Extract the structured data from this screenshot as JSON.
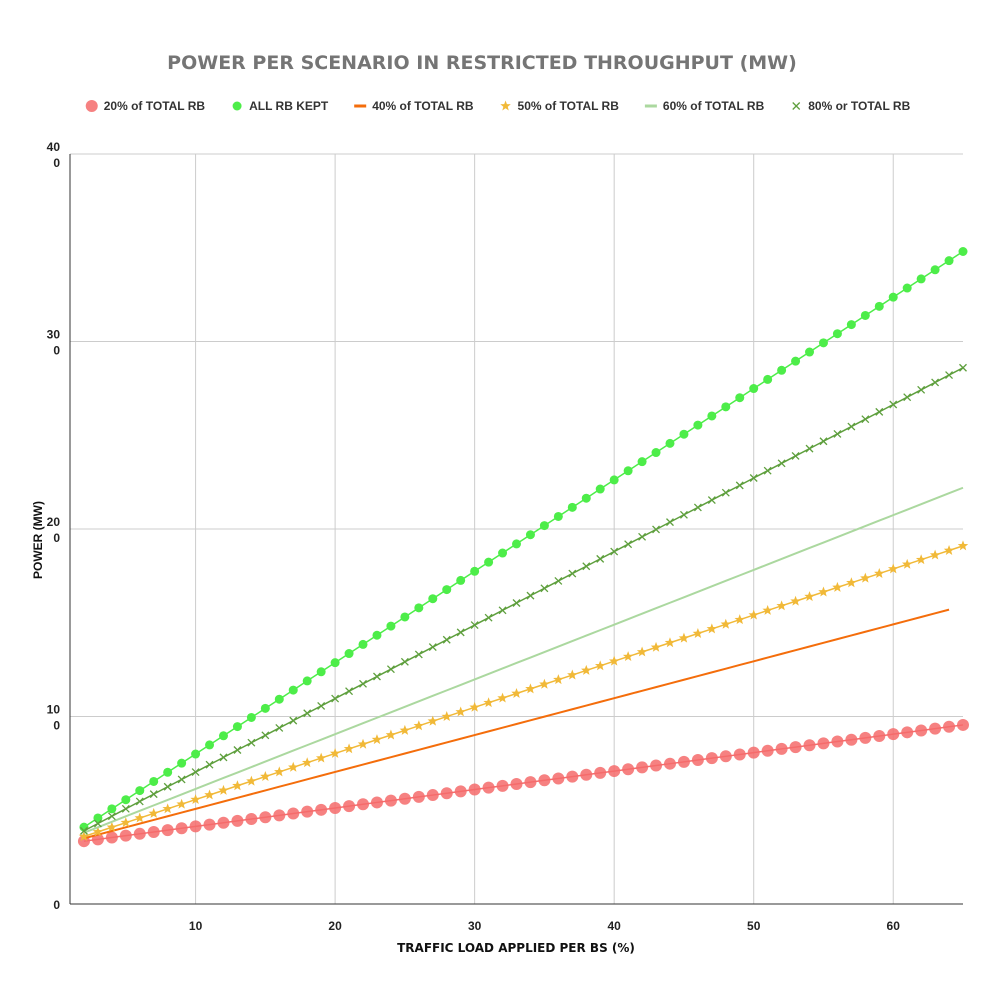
{
  "chart_data": {
    "type": "line",
    "title": "POWER PER SCENARIO IN RESTRICTED THROUGHPUT (MW)",
    "xlabel": "TRAFFIC LOAD APPLIED PER BS (%)",
    "ylabel": "POWER (MW)",
    "xlim": [
      1,
      65
    ],
    "ylim": [
      0,
      400
    ],
    "xticks": [
      10,
      20,
      30,
      40,
      50,
      60
    ],
    "xtick_labels": [
      "10",
      "20",
      "30",
      "40",
      "50",
      "60"
    ],
    "yticks": [
      0,
      100,
      200,
      300,
      400
    ],
    "ytick_labels": [
      [
        "0"
      ],
      [
        "10",
        "0"
      ],
      [
        "20",
        "0"
      ],
      [
        "30",
        "0"
      ],
      [
        "40",
        "0"
      ]
    ],
    "grid": true,
    "legend_position": "top",
    "series": [
      {
        "name": "20% of TOTAL  RB",
        "color": "#f46b6b",
        "marker": "circle-large",
        "x_start": 2,
        "x_end": 65,
        "x_step": 1,
        "y_start": 33.5,
        "y_end": 95.5
      },
      {
        "name": "ALL RB KEPT",
        "color": "#4ded49",
        "marker": "circle",
        "x_start": 2,
        "x_end": 65,
        "x_step": 1,
        "y_start": 41,
        "y_end": 348
      },
      {
        "name": "40% of TOTAL  RB",
        "color": "#f46d0b",
        "marker": "line",
        "x_start": 2,
        "x_end": 64,
        "x_step": 1,
        "y_start": 35,
        "y_end": 157
      },
      {
        "name": "50% of TOTAL  RB",
        "color": "#f1b938",
        "marker": "star",
        "x_start": 2,
        "x_end": 65,
        "x_step": 1,
        "y_start": 36,
        "y_end": 191
      },
      {
        "name": "60% of TOTAL  RB",
        "color": "#abd89f",
        "marker": "line",
        "x_start": 2,
        "x_end": 65,
        "x_step": 1,
        "y_start": 38,
        "y_end": 222
      },
      {
        "name": "80% or TOTAL  RB",
        "color": "#5e9f3d",
        "marker": "x",
        "x_start": 2,
        "x_end": 65,
        "x_step": 1,
        "y_start": 39,
        "y_end": 286
      }
    ]
  }
}
